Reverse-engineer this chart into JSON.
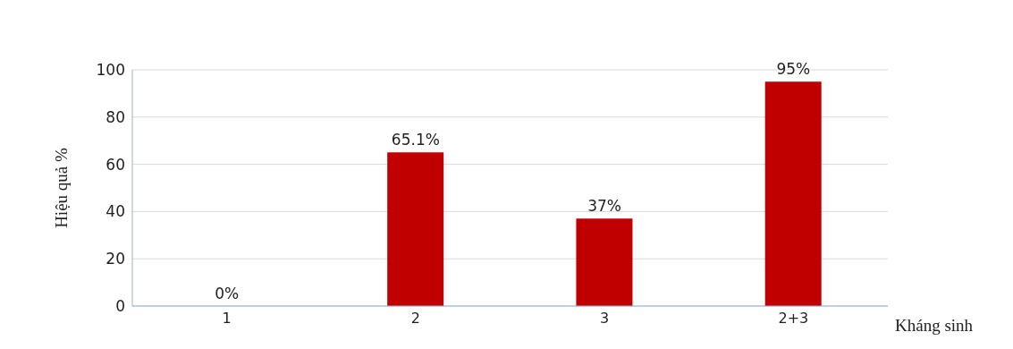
{
  "chart_data": {
    "type": "bar",
    "ylabel": "Hiệu quả %",
    "xlabel": "Kháng sinh",
    "categories": [
      "1",
      "2",
      "3",
      "2+3"
    ],
    "values": [
      0,
      65.1,
      37,
      95
    ],
    "value_labels": [
      "0%",
      "65.1%",
      "37%",
      "95%"
    ],
    "color": "#c00000",
    "ylim": [
      0,
      100
    ],
    "yticks": [
      0,
      20,
      40,
      60,
      80,
      100
    ],
    "grid": "y"
  }
}
